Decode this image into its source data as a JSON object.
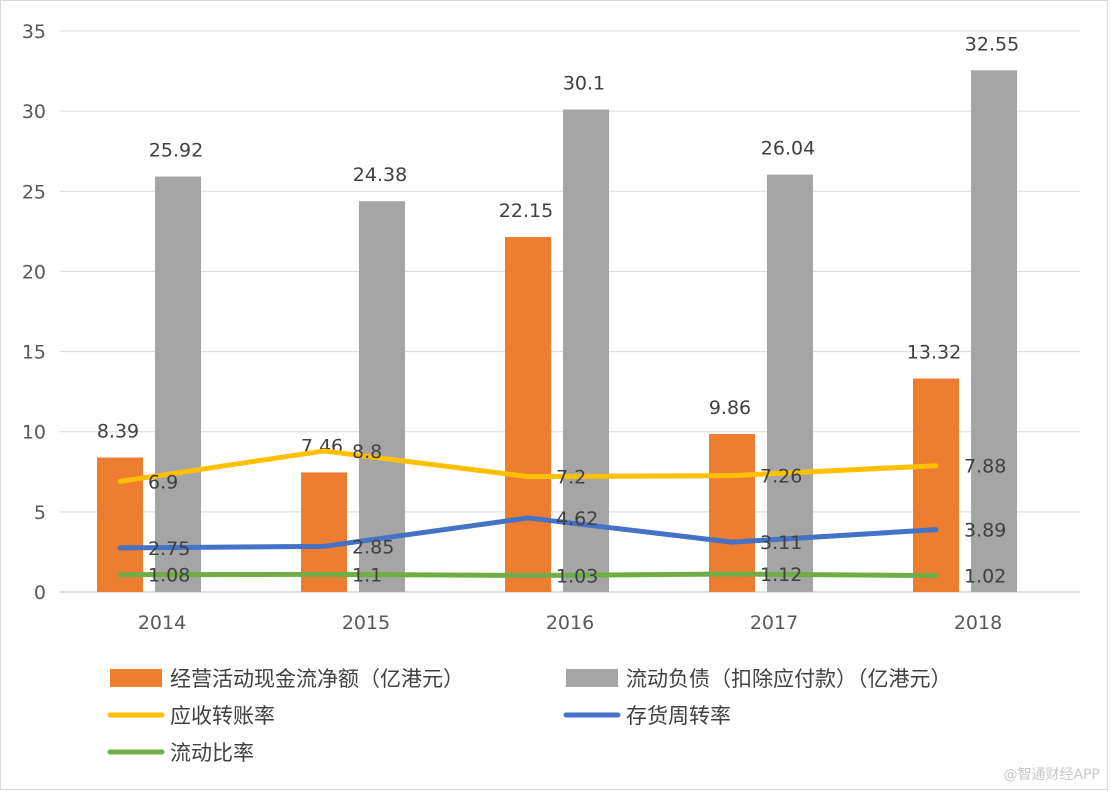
{
  "chart_data": {
    "type": "bar+line",
    "categories": [
      "2014",
      "2015",
      "2016",
      "2017",
      "2018"
    ],
    "ylim": [
      0,
      35
    ],
    "yticks": [
      0,
      5,
      10,
      15,
      20,
      25,
      30,
      35
    ],
    "bar_series": [
      {
        "name": "经营活动现金流净额（亿港元）",
        "color": "#ed7d31",
        "values": [
          8.39,
          7.46,
          22.15,
          9.86,
          13.32
        ]
      },
      {
        "name": "流动负债（扣除应付款）（亿港元）",
        "color": "#a5a5a5",
        "values": [
          25.92,
          24.38,
          30.1,
          26.04,
          32.55
        ]
      }
    ],
    "line_series": [
      {
        "name": "应收转账率",
        "color": "#ffc000",
        "values": [
          6.9,
          8.8,
          7.2,
          7.26,
          7.88
        ]
      },
      {
        "name": "存货周转率",
        "color": "#4472c4",
        "values": [
          2.75,
          2.85,
          4.62,
          3.11,
          3.89
        ]
      },
      {
        "name": "流动比率",
        "color": "#70ad47",
        "values": [
          1.08,
          1.1,
          1.03,
          1.12,
          1.02
        ]
      }
    ],
    "bar_labels": [
      [
        "8.39",
        "7.46",
        "22.15",
        "9.86",
        "13.32"
      ],
      [
        "25.92",
        "24.38",
        "30.1",
        "26.04",
        "32.55"
      ]
    ],
    "line_labels": [
      [
        "6.9",
        "8.8",
        "7.2",
        "7.26",
        "7.88"
      ],
      [
        "2.75",
        "2.85",
        "4.62",
        "3.11",
        "3.89"
      ],
      [
        "1.08",
        "1.1",
        "1.03",
        "1.12",
        "1.02"
      ]
    ],
    "legend_position": "bottom",
    "grid": true
  },
  "watermark": "@智通财经APP"
}
